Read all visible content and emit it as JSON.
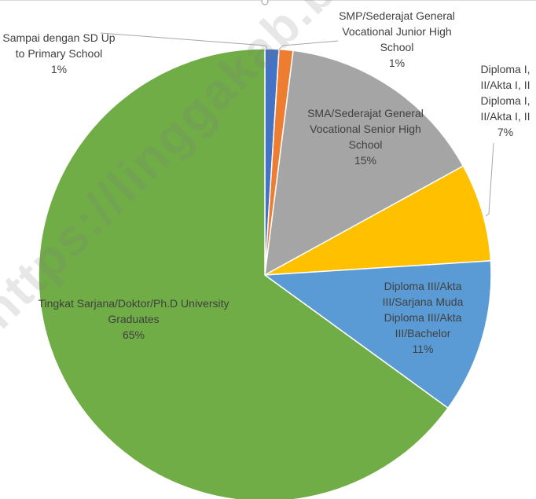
{
  "chart_data": {
    "type": "pie",
    "categories": [
      "Sampai dengan SD Up to Primary School",
      "SMP/Sederajat General Vocational Junior High School",
      "SMA/Sederajat General Vocational Senior High School",
      "Diploma I, II/Akta I, II Diploma I, II/Akta I, II",
      "Diploma III/Akta III/Sarjana Muda Diploma III/Akta III/Bachelor",
      "Tingkat Sarjana/Doktor/Ph.D University Graduates"
    ],
    "values": [
      1,
      1,
      15,
      7,
      11,
      65
    ],
    "value_labels": [
      "1%",
      "1%",
      "15%",
      "7%",
      "11%",
      "65%"
    ],
    "colors": [
      "#4472c4",
      "#ed7d31",
      "#a5a5a5",
      "#ffc000",
      "#5b9bd5",
      "#70ad47"
    ],
    "watermark": "https://linggakab.bps.go.id"
  }
}
